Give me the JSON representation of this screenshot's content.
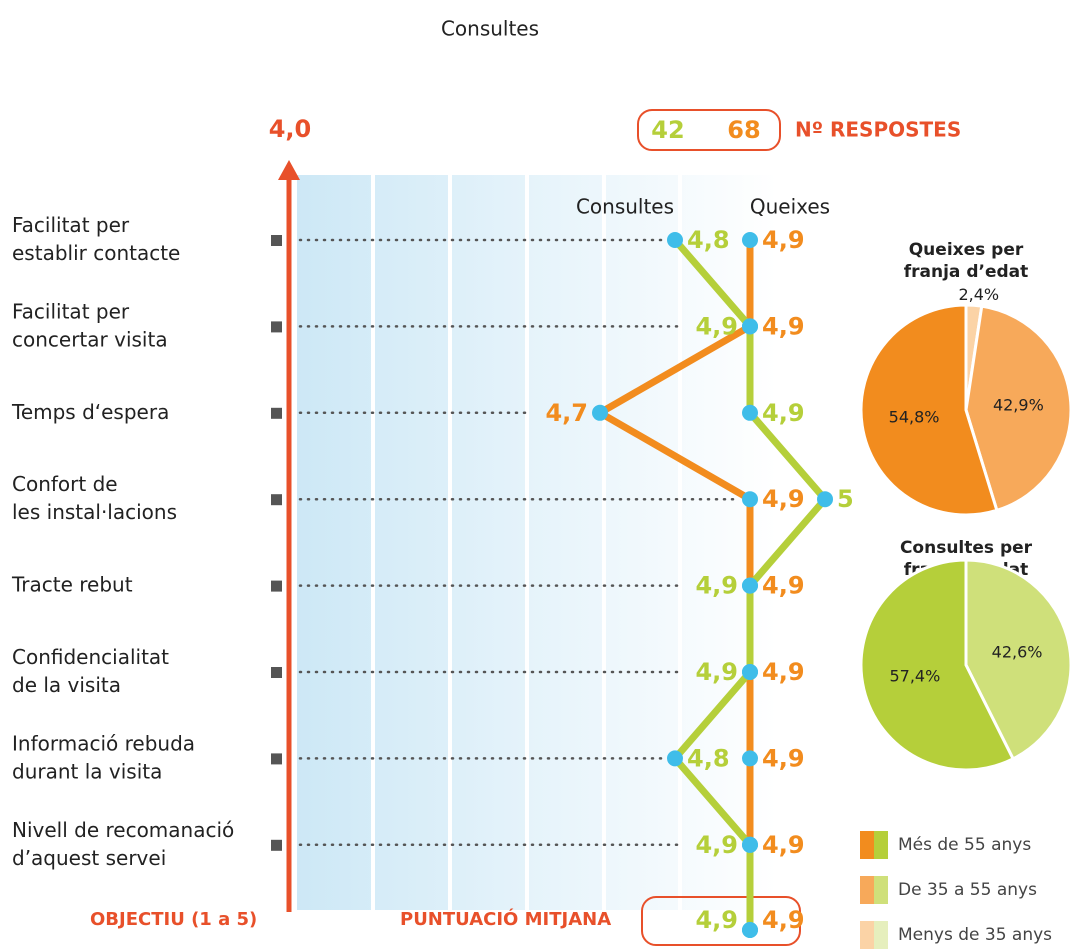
{
  "chart_data": [
    {
      "type": "line",
      "title": "Consultes",
      "categories": [
        [
          "Facilitat per",
          "establir contacte"
        ],
        [
          "Facilitat per",
          "concertar visita"
        ],
        [
          "Temps d‘espera"
        ],
        [
          "Confort de",
          "les instal·lacions"
        ],
        [
          "Tracte rebut"
        ],
        [
          "Confidencialitat",
          "de la visita"
        ],
        [
          "Informació rebuda",
          "durant la visita"
        ],
        [
          "Nivell de recomanació",
          "d’aquest servei"
        ]
      ],
      "series": [
        {
          "name": "Consultes",
          "color": "#b5cf3a",
          "values": [
            4.8,
            4.9,
            4.9,
            5,
            4.9,
            4.9,
            4.8,
            4.9
          ],
          "value_labels": [
            "4,8",
            "4,9",
            "4,9",
            "5",
            "4,9",
            "4,9",
            "4,8",
            "4,9"
          ]
        },
        {
          "name": "Queixes",
          "color": "#f28c1e",
          "values": [
            4.9,
            4.9,
            4.7,
            4.9,
            4.9,
            4.9,
            4.9,
            4.9
          ],
          "value_labels": [
            "4,9",
            "4,9",
            "4,7",
            "4,9",
            "4,9",
            "4,9",
            "4,9",
            "4,9"
          ]
        }
      ],
      "xlim": [
        4.6,
        5
      ],
      "objective": {
        "value": 4,
        "label": "4,0",
        "caption": "OBJECTIU (1 a 5)"
      },
      "average": {
        "label": "PUNTUACIÓ MITJANA",
        "values": [
          4.9,
          4.9
        ],
        "value_labels": [
          "4,9",
          "4,9"
        ]
      },
      "responses": {
        "label": "Nº RESPOSTES",
        "values": [
          42,
          68
        ]
      }
    },
    {
      "type": "pie",
      "title": [
        "Queixes per",
        "franja d’edat"
      ],
      "categories": [
        "Menys de 35 anys",
        "De 35 a 55 anys",
        "Més de 55 anys"
      ],
      "values": [
        2.4,
        42.9,
        54.8
      ],
      "value_labels": [
        "2,4%",
        "42,9%",
        "54,8%"
      ],
      "colors": [
        "#fbd3a6",
        "#f7a95a",
        "#f28c1e"
      ]
    },
    {
      "type": "pie",
      "title": [
        "Consultes per",
        "franja d’edat"
      ],
      "categories": [
        "De 35 a 55 anys",
        "Més de 55 anys"
      ],
      "values": [
        42.6,
        57.4
      ],
      "value_labels": [
        "42,6%",
        "57,4%"
      ],
      "colors": [
        "#cfe07a",
        "#b5cf3a"
      ]
    }
  ]
}
